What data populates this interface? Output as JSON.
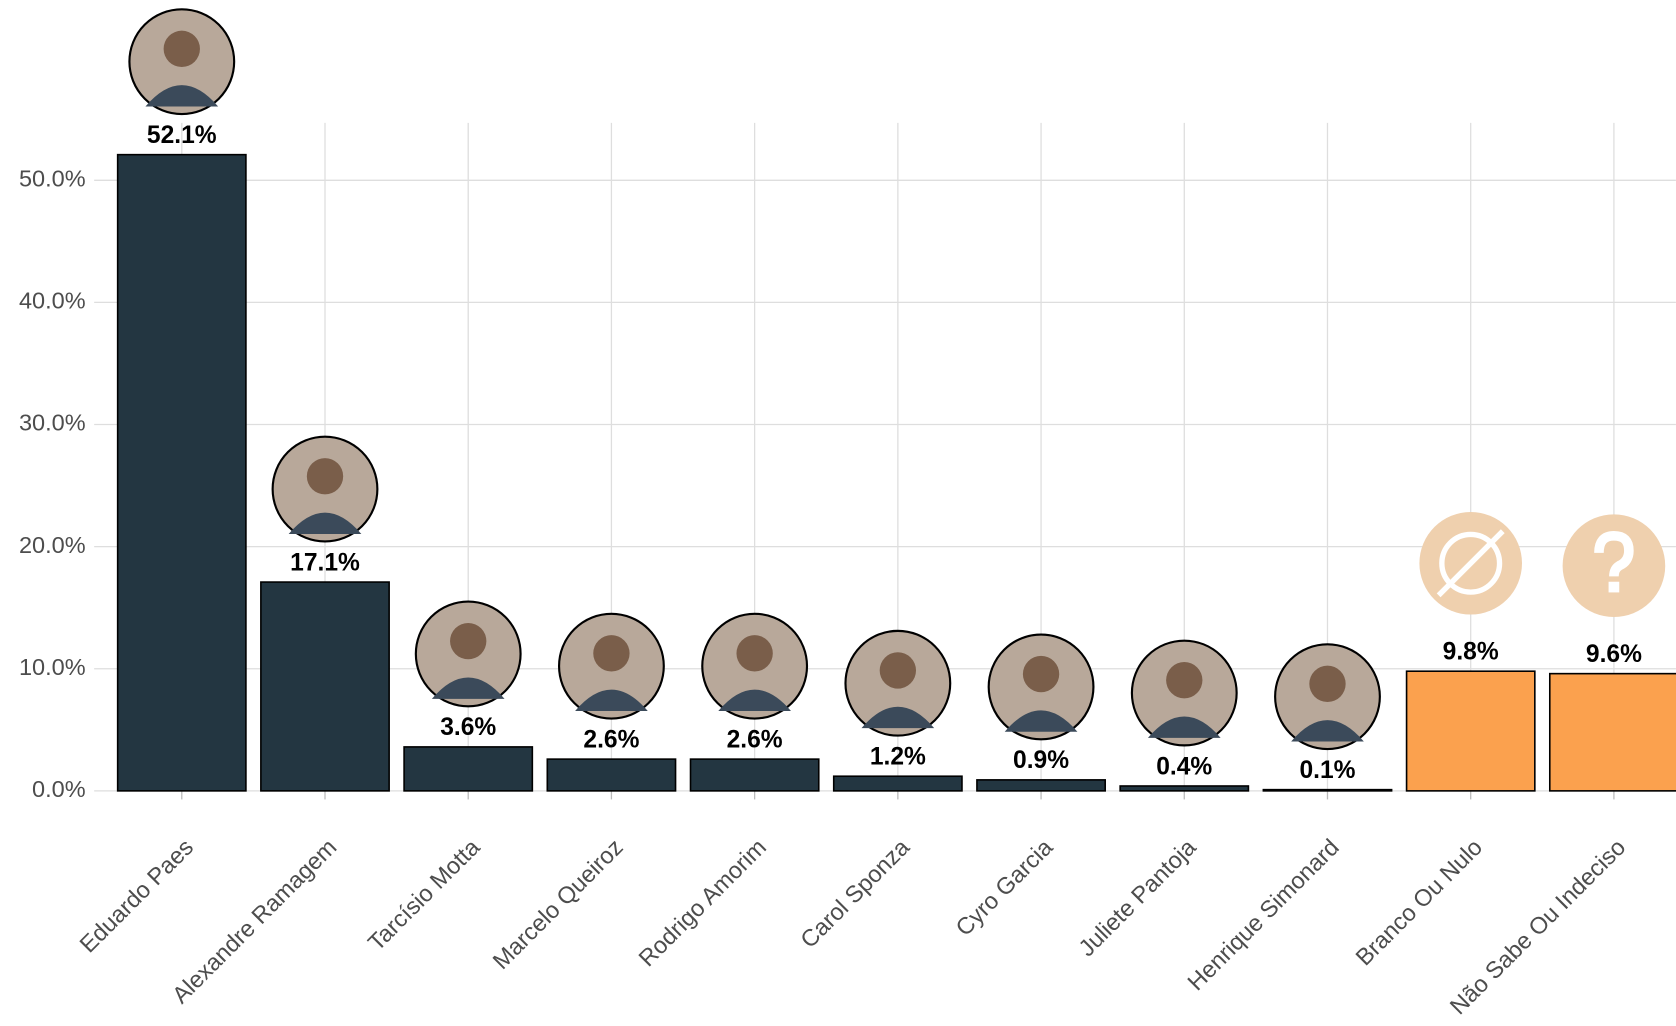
{
  "chart_data": {
    "type": "bar",
    "categories": [
      "Eduardo Paes",
      "Alexandre Ramagem",
      "Tarcísio Motta",
      "Marcelo Queiroz",
      "Rodrigo Amorim",
      "Carol Sponza",
      "Cyro Garcia",
      "Juliete Pantoja",
      "Henrique Simonard",
      "Branco Ou Nulo",
      "Não Sabe Ou Indeciso"
    ],
    "values": [
      52.1,
      17.1,
      3.6,
      2.6,
      2.6,
      1.2,
      0.9,
      0.4,
      0.1,
      9.8,
      9.6
    ],
    "value_labels": [
      "52.1%",
      "17.1%",
      "3.6%",
      "2.6%",
      "2.6%",
      "1.2%",
      "0.9%",
      "0.4%",
      "0.1%",
      "9.8%",
      "9.6%"
    ],
    "colors": [
      "#233641",
      "#233641",
      "#233641",
      "#233641",
      "#233641",
      "#233641",
      "#233641",
      "#233641",
      "#233641",
      "#fba14e",
      "#fba14e"
    ],
    "ylim": [
      0,
      54.7
    ],
    "yticks": [
      {
        "value": 0,
        "label": "0.0%"
      },
      {
        "value": 10,
        "label": "10.0%"
      },
      {
        "value": 20,
        "label": "20.0%"
      },
      {
        "value": 30,
        "label": "30.0%"
      },
      {
        "value": 40,
        "label": "40.0%"
      },
      {
        "value": 50,
        "label": "50.0%"
      }
    ],
    "grid": true
  }
}
